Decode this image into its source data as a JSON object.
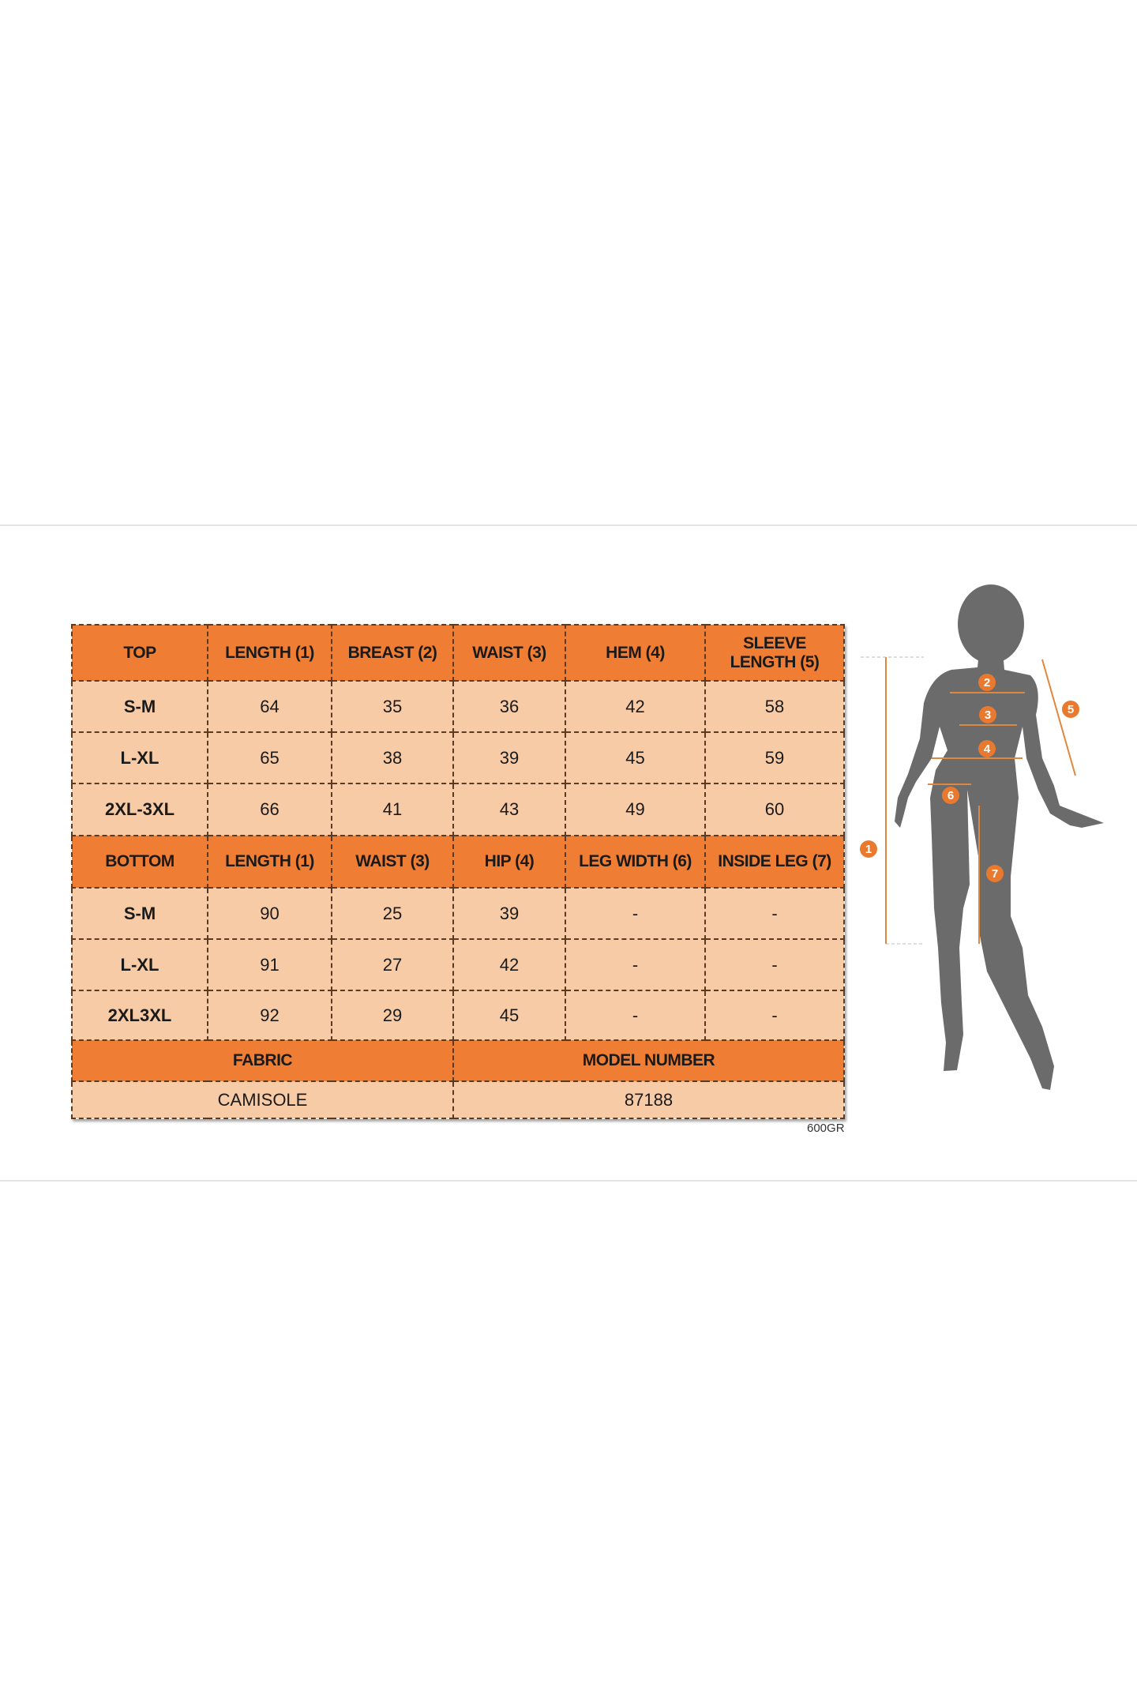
{
  "top_table": {
    "headers": [
      "TOP",
      "LENGTH (1)",
      "BREAST (2)",
      "WAIST (3)",
      "HEM (4)",
      "SLEEVE LENGTH (5)"
    ],
    "rows": [
      [
        "S-M",
        "64",
        "35",
        "36",
        "42",
        "58"
      ],
      [
        "L-XL",
        "65",
        "38",
        "39",
        "45",
        "59"
      ],
      [
        "2XL-3XL",
        "66",
        "41",
        "43",
        "49",
        "60"
      ]
    ]
  },
  "bottom_table": {
    "headers": [
      "BOTTOM",
      "LENGTH (1)",
      "WAIST (3)",
      "HIP (4)",
      "LEG WIDTH (6)",
      "INSIDE LEG (7)"
    ],
    "rows": [
      [
        "S-M",
        "90",
        "25",
        "39",
        "-",
        "-"
      ],
      [
        "L-XL",
        "91",
        "27",
        "42",
        "-",
        "-"
      ],
      [
        "2XL3XL",
        "92",
        "29",
        "45",
        "-",
        "-"
      ]
    ]
  },
  "info": {
    "fabric_label": "FABRIC",
    "model_label": "MODEL NUMBER",
    "fabric_value": "CAMISOLE",
    "model_value": "87188"
  },
  "weight": "600GR",
  "figure": {
    "markers": [
      "1",
      "2",
      "3",
      "4",
      "5",
      "6",
      "7"
    ]
  },
  "colors": {
    "header": "#ef7d33",
    "cell": "#f8cba7",
    "silhouette": "#6b6b6b",
    "marker": "#e8792f"
  }
}
